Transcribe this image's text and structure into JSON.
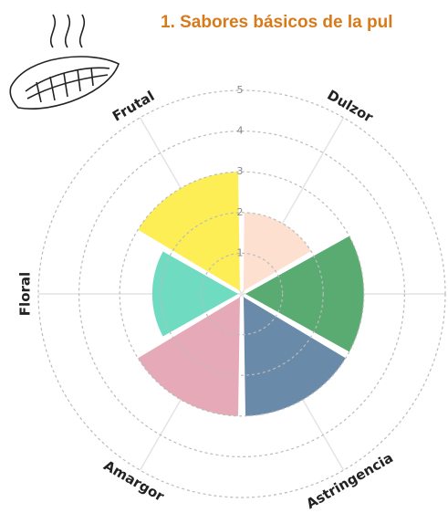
{
  "chart_data": {
    "type": "polar-bar",
    "title": "1. Sabores básicos de la pul",
    "categories": [
      "Dulzor",
      null,
      "Astringencia",
      "Amargor",
      "Floral",
      "Frutal"
    ],
    "values": [
      2.0,
      3.0,
      3.0,
      3.0,
      2.2,
      3.0
    ],
    "colors": [
      "#fde0d0",
      "#5aab72",
      "#6a8aaa",
      "#e6a9b8",
      "#6fdcc2",
      "#fdee55"
    ],
    "rlim": [
      0,
      5
    ],
    "rticks": [
      1,
      2,
      3,
      4,
      5
    ],
    "grid": true
  }
}
